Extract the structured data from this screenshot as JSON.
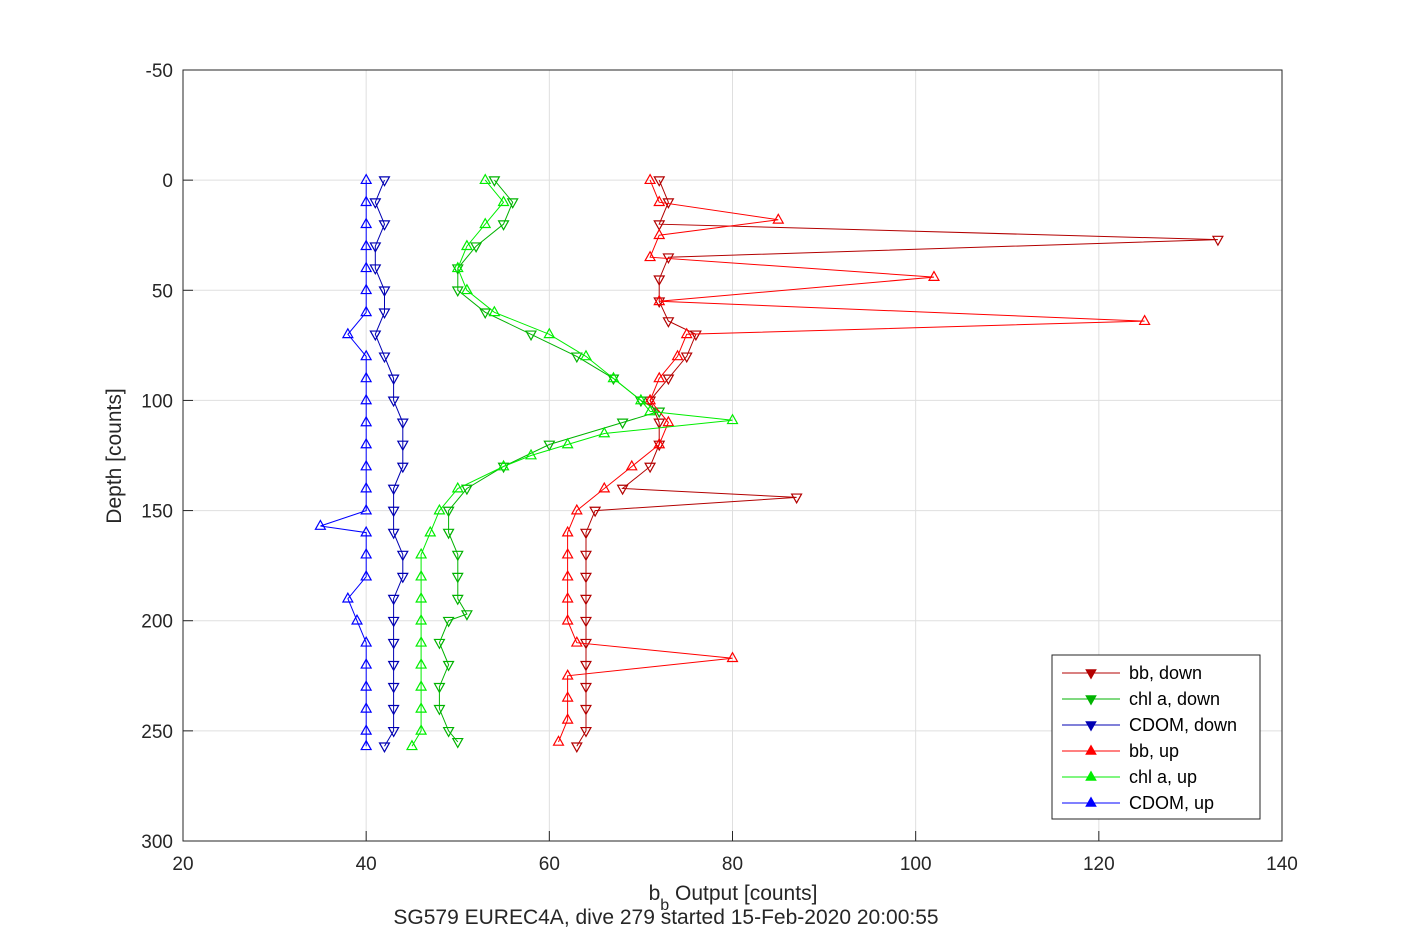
{
  "chart_data": {
    "type": "line",
    "title": "",
    "xlabel": {
      "base": "b",
      "sub": "b",
      "rest": " Output [counts]"
    },
    "ylabel": "Depth [counts]",
    "caption": "SG579 EUREC4A, dive 279 started 15-Feb-2020 20:00:55",
    "xlim": [
      20,
      140
    ],
    "ylim": [
      -50,
      300
    ],
    "y_reversed": true,
    "xticks": [
      "20",
      "40",
      "60",
      "80",
      "100",
      "120",
      "140"
    ],
    "yticks": [
      "-50",
      "0",
      "50",
      "100",
      "150",
      "200",
      "250",
      "300"
    ],
    "grid": true,
    "legend_position": "bottom-right",
    "series": [
      {
        "name": "bb, down",
        "color": "#b30000",
        "marker": "triangle-down",
        "depth": [
          0,
          10,
          20,
          27,
          35,
          45,
          55,
          64,
          70,
          80,
          90,
          100,
          110,
          120,
          130,
          140,
          144,
          150,
          160,
          170,
          180,
          190,
          200,
          210,
          220,
          230,
          240,
          250,
          257
        ],
        "values": [
          72,
          73,
          72,
          133,
          73,
          72,
          72,
          73,
          76,
          75,
          73,
          71,
          72,
          72,
          71,
          68,
          87,
          65,
          64,
          64,
          64,
          64,
          64,
          64,
          64,
          64,
          64,
          64,
          63
        ]
      },
      {
        "name": "chl a, down",
        "color": "#00b300",
        "marker": "triangle-down",
        "depth": [
          0,
          10,
          20,
          30,
          40,
          50,
          60,
          70,
          80,
          90,
          100,
          105,
          110,
          120,
          130,
          140,
          150,
          160,
          170,
          180,
          190,
          197,
          200,
          210,
          220,
          230,
          240,
          250,
          255
        ],
        "values": [
          54,
          56,
          55,
          52,
          50,
          50,
          53,
          58,
          63,
          67,
          70,
          72,
          68,
          60,
          55,
          51,
          49,
          49,
          50,
          50,
          50,
          51,
          49,
          48,
          49,
          48,
          48,
          49,
          50
        ]
      },
      {
        "name": "CDOM, down",
        "color": "#0000b3",
        "marker": "triangle-down",
        "depth": [
          0,
          10,
          20,
          30,
          40,
          50,
          60,
          70,
          80,
          90,
          100,
          110,
          120,
          130,
          140,
          150,
          160,
          170,
          180,
          190,
          200,
          210,
          220,
          230,
          240,
          250,
          257
        ],
        "values": [
          42,
          41,
          42,
          41,
          41,
          42,
          42,
          41,
          42,
          43,
          43,
          44,
          44,
          44,
          43,
          43,
          43,
          44,
          44,
          43,
          43,
          43,
          43,
          43,
          43,
          43,
          42
        ]
      },
      {
        "name": "bb, up",
        "color": "#ff0000",
        "marker": "triangle-up",
        "depth": [
          0,
          10,
          18,
          25,
          35,
          44,
          55,
          64,
          70,
          80,
          90,
          100,
          110,
          120,
          130,
          140,
          150,
          160,
          170,
          180,
          190,
          200,
          210,
          217,
          225,
          235,
          245,
          255
        ],
        "values": [
          71,
          72,
          85,
          72,
          71,
          102,
          72,
          125,
          75,
          74,
          72,
          71,
          73,
          72,
          69,
          66,
          63,
          62,
          62,
          62,
          62,
          62,
          63,
          80,
          62,
          62,
          62,
          61
        ]
      },
      {
        "name": "chl a, up",
        "color": "#00ee00",
        "marker": "triangle-up",
        "depth": [
          0,
          10,
          20,
          30,
          40,
          50,
          60,
          70,
          80,
          90,
          100,
          105,
          109,
          115,
          120,
          125,
          130,
          140,
          150,
          160,
          170,
          180,
          190,
          200,
          210,
          220,
          230,
          240,
          250,
          257
        ],
        "values": [
          53,
          55,
          53,
          51,
          50,
          51,
          54,
          60,
          64,
          67,
          70,
          71,
          80,
          66,
          62,
          58,
          55,
          50,
          48,
          47,
          46,
          46,
          46,
          46,
          46,
          46,
          46,
          46,
          46,
          45
        ]
      },
      {
        "name": "CDOM, up",
        "color": "#0000ff",
        "marker": "triangle-up",
        "depth": [
          0,
          10,
          20,
          30,
          40,
          50,
          60,
          70,
          80,
          90,
          100,
          110,
          120,
          130,
          140,
          150,
          157,
          160,
          170,
          180,
          190,
          200,
          210,
          220,
          230,
          240,
          250,
          257
        ],
        "values": [
          40,
          40,
          40,
          40,
          40,
          40,
          40,
          38,
          40,
          40,
          40,
          40,
          40,
          40,
          40,
          40,
          35,
          40,
          40,
          40,
          38,
          39,
          40,
          40,
          40,
          40,
          40,
          40
        ]
      }
    ]
  }
}
